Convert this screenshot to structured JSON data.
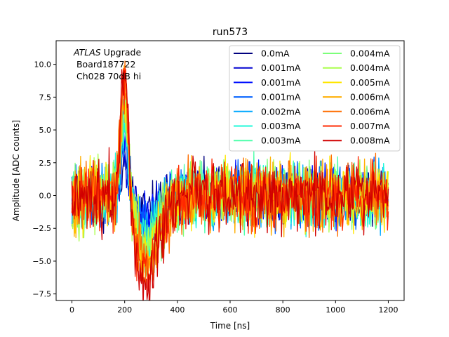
{
  "chart_data": {
    "type": "line",
    "title": "run573",
    "xlabel": "Time [ns]",
    "ylabel": "Amplitude [ADC counts]",
    "xlim": [
      -60,
      1260
    ],
    "ylim": [
      -8.0,
      11.8
    ],
    "xticks": [
      0,
      200,
      400,
      600,
      800,
      1000,
      1200
    ],
    "yticks": [
      -7.5,
      -5.0,
      -2.5,
      0.0,
      2.5,
      5.0,
      7.5,
      10.0
    ],
    "xtick_labels": [
      "0",
      "200",
      "400",
      "600",
      "800",
      "1000",
      "1200"
    ],
    "ytick_labels": [
      "−7.5",
      "−5.0",
      "−2.5",
      "0.0",
      "2.5",
      "5.0",
      "7.5",
      "10.0"
    ],
    "legend_position": "top-right",
    "annotation": {
      "italic": "ATLAS",
      "rest": " Upgrade",
      "line2": " Board187722",
      "line3": " Ch028 70dB hi"
    },
    "series": [
      {
        "name": "0.0mA",
        "color": "#00007f",
        "peak": 3.2,
        "undershoot": -1.2,
        "noise": 1.5,
        "seed": 11
      },
      {
        "name": "0.001mA",
        "color": "#0000d0",
        "peak": 4.0,
        "undershoot": -1.4,
        "noise": 1.5,
        "seed": 23
      },
      {
        "name": "0.001mA",
        "color": "#0010ff",
        "peak": 4.5,
        "undershoot": -1.6,
        "noise": 1.5,
        "seed": 37
      },
      {
        "name": "0.001mA",
        "color": "#0060ff",
        "peak": 5.0,
        "undershoot": -1.9,
        "noise": 1.6,
        "seed": 41
      },
      {
        "name": "0.002mA",
        "color": "#00a8ff",
        "peak": 5.5,
        "undershoot": -2.2,
        "noise": 1.6,
        "seed": 53
      },
      {
        "name": "0.003mA",
        "color": "#1cf8da",
        "peak": 6.0,
        "undershoot": -2.6,
        "noise": 1.6,
        "seed": 67
      },
      {
        "name": "0.003mA",
        "color": "#4cffaa",
        "peak": 6.6,
        "undershoot": -3.0,
        "noise": 1.7,
        "seed": 71
      },
      {
        "name": "0.004mA",
        "color": "#7cff7a",
        "peak": 7.1,
        "undershoot": -3.4,
        "noise": 1.7,
        "seed": 83
      },
      {
        "name": "0.004mA",
        "color": "#aaff4c",
        "peak": 7.6,
        "undershoot": -3.8,
        "noise": 1.7,
        "seed": 97
      },
      {
        "name": "0.005mA",
        "color": "#ffe600",
        "peak": 8.1,
        "undershoot": -4.2,
        "noise": 1.8,
        "seed": 101
      },
      {
        "name": "0.006mA",
        "color": "#ffae00",
        "peak": 8.6,
        "undershoot": -4.6,
        "noise": 1.8,
        "seed": 113
      },
      {
        "name": "0.006mA",
        "color": "#ff6e00",
        "peak": 9.1,
        "undershoot": -5.0,
        "noise": 1.8,
        "seed": 127
      },
      {
        "name": "0.007mA",
        "color": "#ff2800",
        "peak": 9.8,
        "undershoot": -5.5,
        "noise": 1.8,
        "seed": 131
      },
      {
        "name": "0.008mA",
        "color": "#d00000",
        "peak": 10.4,
        "undershoot": -6.0,
        "noise": 1.8,
        "seed": 149
      }
    ]
  }
}
